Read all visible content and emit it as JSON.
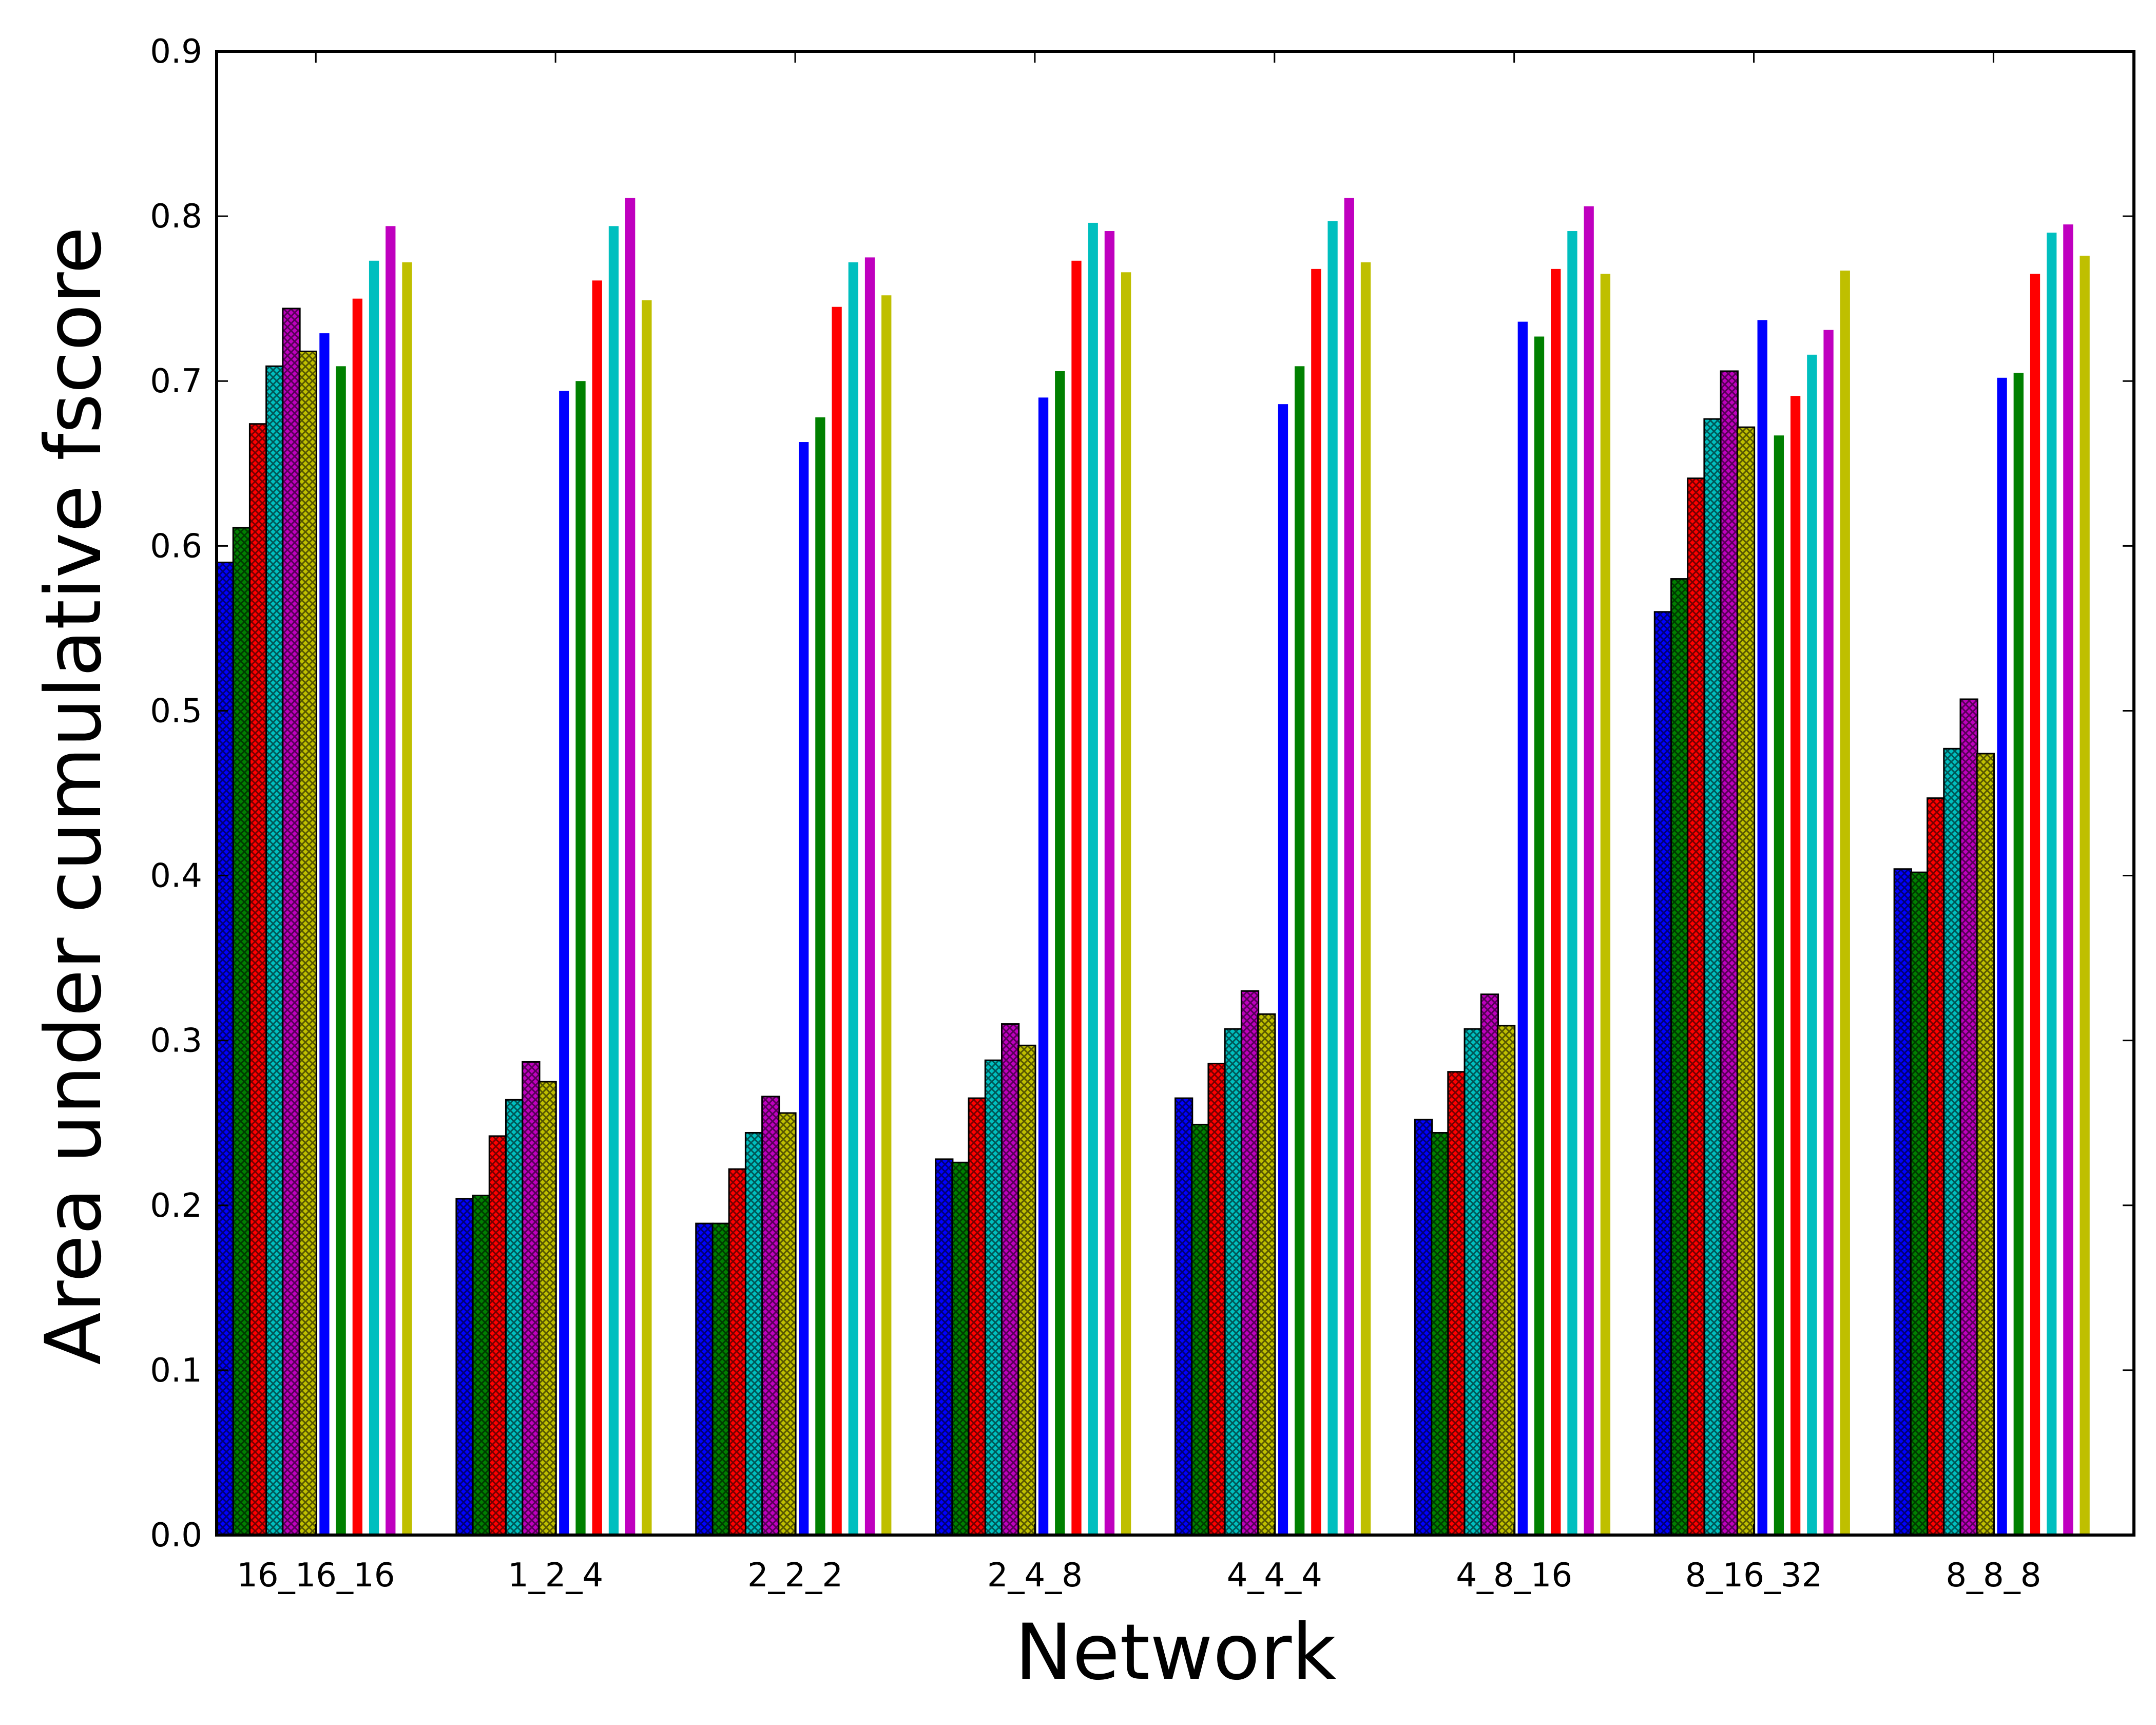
{
  "chart_data": {
    "type": "bar",
    "title": "",
    "xlabel": "Network",
    "ylabel": "Area under cumulative fscore",
    "ylim": [
      0,
      0.9
    ],
    "yticks": [
      "0.0",
      "0.1",
      "0.2",
      "0.3",
      "0.4",
      "0.5",
      "0.6",
      "0.7",
      "0.8",
      "0.9"
    ],
    "categories": [
      "16_16_16",
      "1_2_4",
      "2_2_2",
      "2_4_8",
      "4_4_4",
      "4_8_16",
      "8_16_32",
      "8_8_8"
    ],
    "grid": false,
    "legend": "none",
    "series": [
      {
        "color": "#0000ff",
        "hatched": true,
        "values": [
          0.59,
          0.204,
          0.189,
          0.228,
          0.265,
          0.252,
          0.56,
          0.404
        ]
      },
      {
        "color": "#008000",
        "hatched": true,
        "values": [
          0.611,
          0.206,
          0.189,
          0.226,
          0.249,
          0.244,
          0.58,
          0.402
        ]
      },
      {
        "color": "#ff0000",
        "hatched": true,
        "values": [
          0.674,
          0.242,
          0.222,
          0.265,
          0.286,
          0.281,
          0.641,
          0.447
        ]
      },
      {
        "color": "#00bfbf",
        "hatched": true,
        "values": [
          0.709,
          0.264,
          0.244,
          0.288,
          0.307,
          0.307,
          0.677,
          0.477
        ]
      },
      {
        "color": "#bf00bf",
        "hatched": true,
        "values": [
          0.744,
          0.287,
          0.266,
          0.31,
          0.33,
          0.328,
          0.706,
          0.507
        ]
      },
      {
        "color": "#bfbf00",
        "hatched": true,
        "values": [
          0.718,
          0.275,
          0.256,
          0.297,
          0.316,
          0.309,
          0.672,
          0.474
        ]
      },
      {
        "color": "#0000ff",
        "hatched": false,
        "values": [
          0.729,
          0.694,
          0.663,
          0.69,
          0.686,
          0.736,
          0.737,
          0.702
        ]
      },
      {
        "color": "#008000",
        "hatched": false,
        "values": [
          0.709,
          0.7,
          0.678,
          0.706,
          0.709,
          0.727,
          0.667,
          0.705
        ]
      },
      {
        "color": "#ff0000",
        "hatched": false,
        "values": [
          0.75,
          0.761,
          0.745,
          0.773,
          0.768,
          0.768,
          0.691,
          0.765
        ]
      },
      {
        "color": "#00bfbf",
        "hatched": false,
        "values": [
          0.773,
          0.794,
          0.772,
          0.796,
          0.797,
          0.791,
          0.716,
          0.79
        ]
      },
      {
        "color": "#bf00bf",
        "hatched": false,
        "values": [
          0.794,
          0.811,
          0.775,
          0.791,
          0.811,
          0.806,
          0.731,
          0.795
        ]
      },
      {
        "color": "#bfbf00",
        "hatched": false,
        "values": [
          0.772,
          0.749,
          0.752,
          0.766,
          0.772,
          0.765,
          0.767,
          0.776
        ]
      }
    ]
  }
}
